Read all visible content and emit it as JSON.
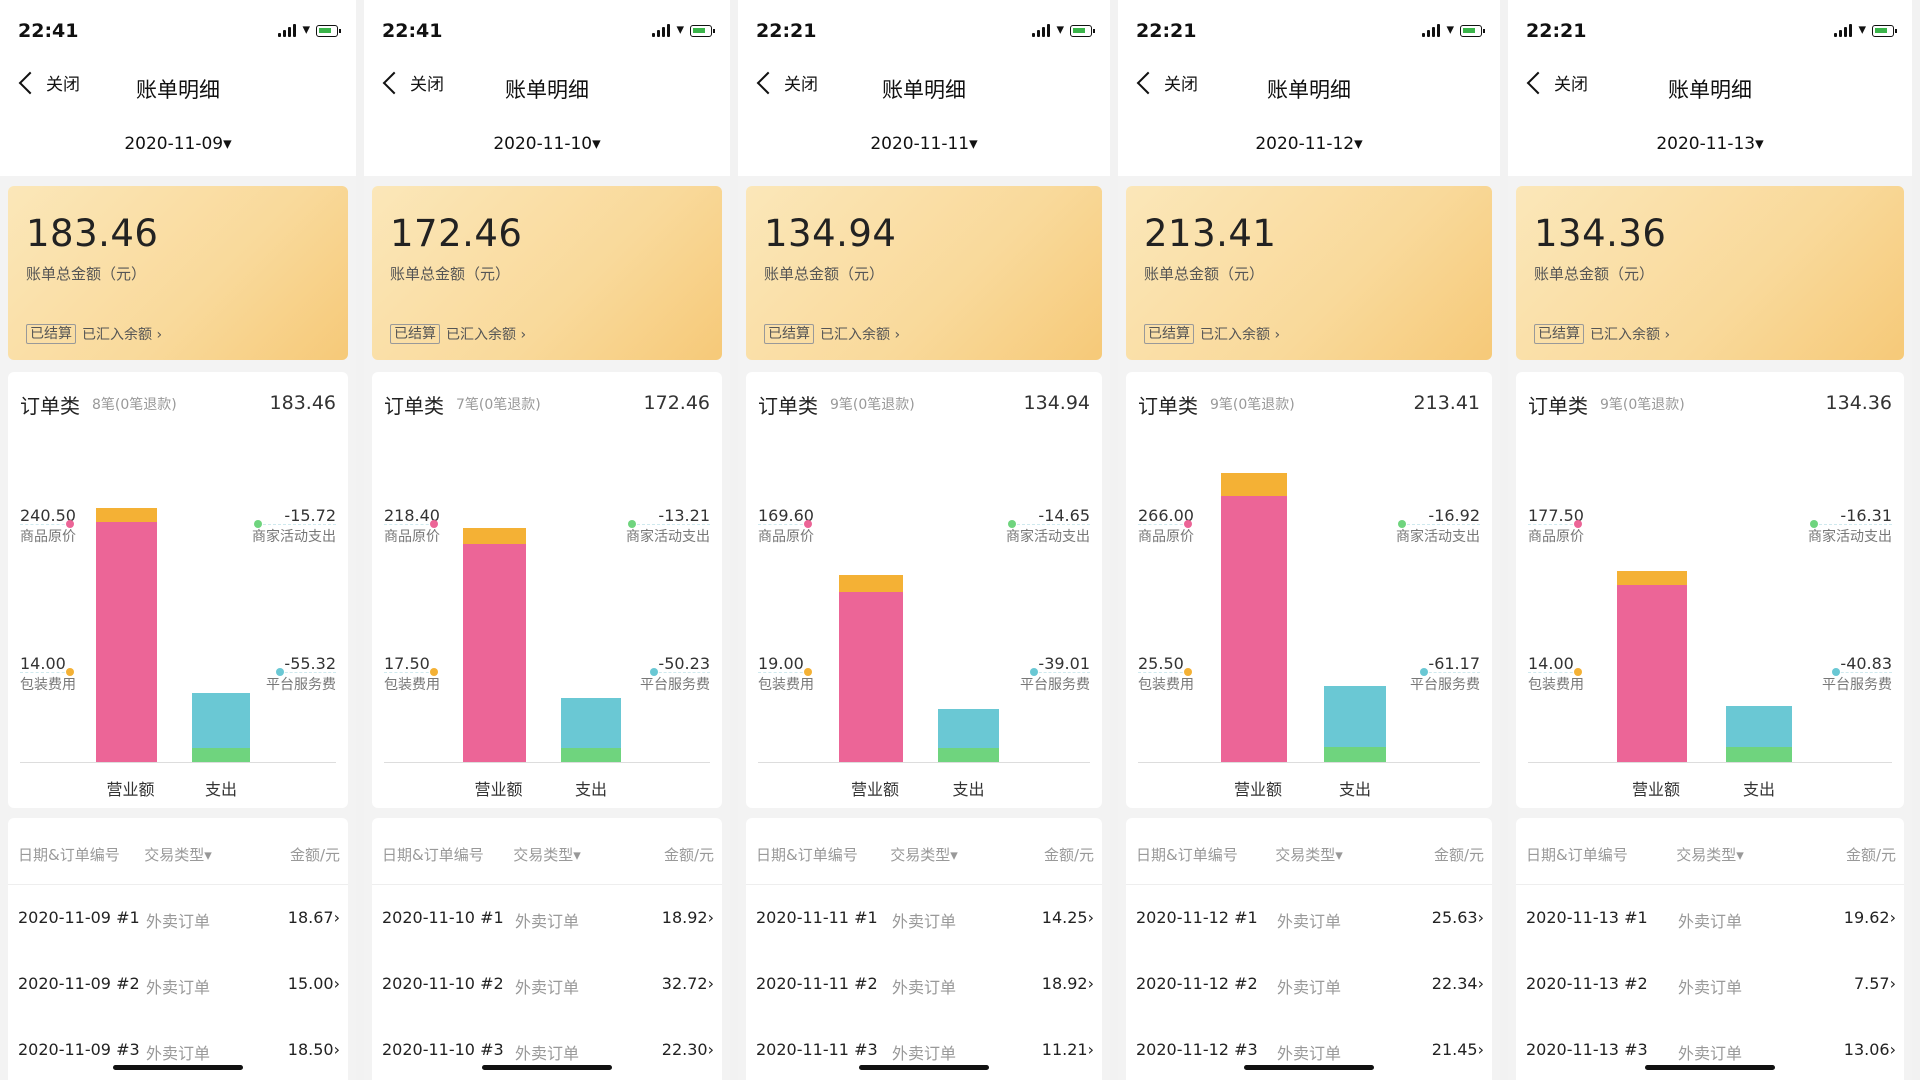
{
  "common": {
    "back_label": "关闭",
    "page_title": "账单明细",
    "amount_label": "账单总金额（元）",
    "settled_tag": "已结算",
    "settled_link": "已汇入余额 ›",
    "chart_title": "订单类",
    "label_original": "商品原价",
    "label_packaging": "包装费用",
    "label_activity": "商家活动支出",
    "label_service": "平台服务费",
    "x_revenue": "营业额",
    "x_expense": "支出",
    "col_date": "日期&订单编号",
    "col_type": "交易类型▾",
    "col_amount": "金额/元",
    "order_type": "外卖订单",
    "colors": {
      "pink": "#ec6597",
      "orange": "#f4b135",
      "teal": "#6ac8d4",
      "green": "#6fd47e"
    }
  },
  "panels": [
    {
      "time": "22:41",
      "date": "2020-11-09▾",
      "amount": "183.46",
      "count": "8笔(0笔退款)",
      "total": "183.46",
      "original": "240.50",
      "packaging": "14.00",
      "activity": "-15.72",
      "service": "-55.32",
      "rows": [
        {
          "date": "2020-11-09 #1",
          "amount": "18.67›"
        },
        {
          "date": "2020-11-09 #2",
          "amount": "15.00›"
        },
        {
          "date": "2020-11-09 #3",
          "amount": "18.50›"
        }
      ]
    },
    {
      "time": "22:41",
      "date": "2020-11-10▾",
      "amount": "172.46",
      "count": "7笔(0笔退款)",
      "total": "172.46",
      "original": "218.40",
      "packaging": "17.50",
      "activity": "-13.21",
      "service": "-50.23",
      "rows": [
        {
          "date": "2020-11-10 #1",
          "amount": "18.92›"
        },
        {
          "date": "2020-11-10 #2",
          "amount": "32.72›"
        },
        {
          "date": "2020-11-10 #3",
          "amount": "22.30›"
        }
      ]
    },
    {
      "time": "22:21",
      "date": "2020-11-11▾",
      "amount": "134.94",
      "count": "9笔(0笔退款)",
      "total": "134.94",
      "original": "169.60",
      "packaging": "19.00",
      "activity": "-14.65",
      "service": "-39.01",
      "rows": [
        {
          "date": "2020-11-11 #1",
          "amount": "14.25›"
        },
        {
          "date": "2020-11-11 #2",
          "amount": "18.92›"
        },
        {
          "date": "2020-11-11 #3",
          "amount": "11.21›"
        }
      ]
    },
    {
      "time": "22:21",
      "date": "2020-11-12▾",
      "amount": "213.41",
      "count": "9笔(0笔退款)",
      "total": "213.41",
      "original": "266.00",
      "packaging": "25.50",
      "activity": "-16.92",
      "service": "-61.17",
      "rows": [
        {
          "date": "2020-11-12 #1",
          "amount": "25.63›"
        },
        {
          "date": "2020-11-12 #2",
          "amount": "22.34›"
        },
        {
          "date": "2020-11-12 #3",
          "amount": "21.45›"
        }
      ]
    },
    {
      "time": "22:21",
      "date": "2020-11-13▾",
      "amount": "134.36",
      "count": "9笔(0笔退款)",
      "total": "134.36",
      "original": "177.50",
      "packaging": "14.00",
      "activity": "-16.31",
      "service": "-40.83",
      "rows": [
        {
          "date": "2020-11-13 #1",
          "amount": "19.62›"
        },
        {
          "date": "2020-11-13 #2",
          "amount": "7.57›"
        },
        {
          "date": "2020-11-13 #3",
          "amount": "13.06›"
        }
      ]
    }
  ]
}
